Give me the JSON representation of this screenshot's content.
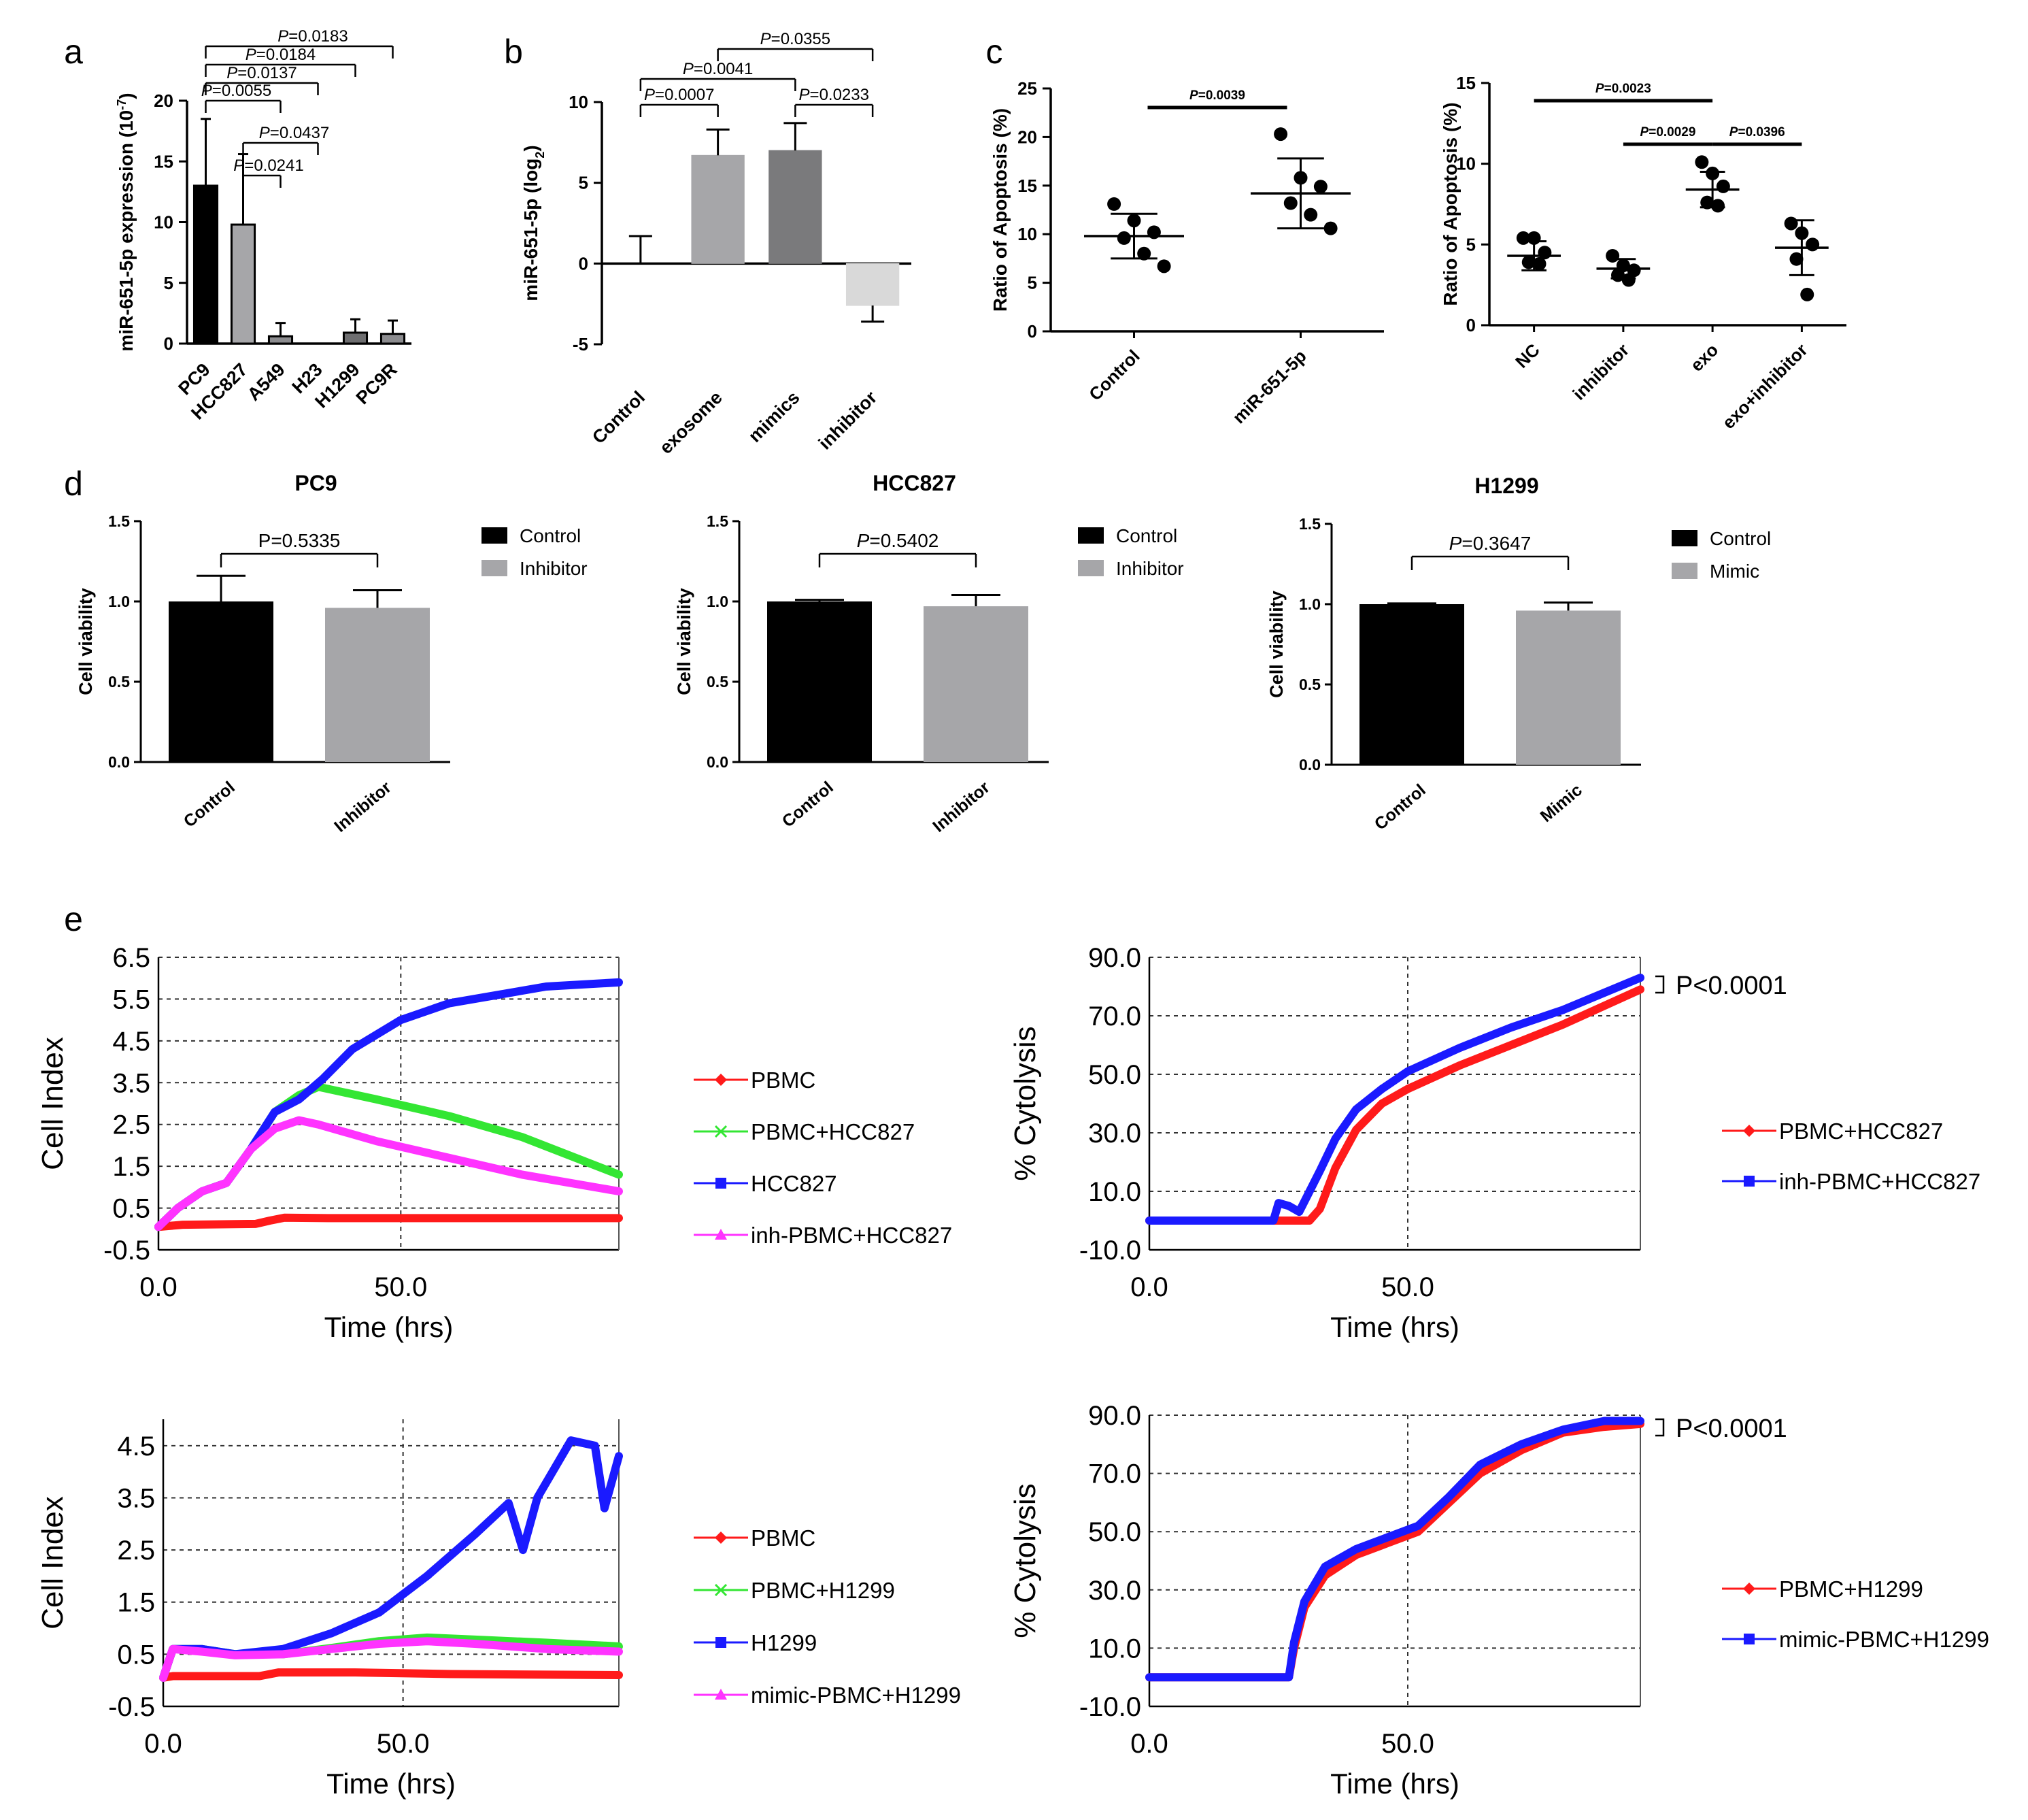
{
  "colors": {
    "black": "#000000",
    "gray_light": "#a6a6a9",
    "gray_mid": "#8c8c8f",
    "gray_dark": "#6e6e70",
    "gray_pale": "#d9d9d9",
    "red": "#ff1a1a",
    "green": "#33e633",
    "blue": "#1a1aff",
    "magenta": "#ff33ff"
  },
  "panel_letters": [
    "a",
    "b",
    "c",
    "d",
    "e"
  ],
  "chart_data": [
    {
      "id": "a",
      "type": "bar",
      "ylabel_main": "miR-651-5p expression (10",
      "ylabel_exp": "-7",
      "ylabel_close": ")",
      "ylim": [
        0,
        20
      ],
      "yticks": [
        "0",
        "5",
        "10",
        "15",
        "20"
      ],
      "categories": [
        "PC9",
        "HCC827",
        "A549",
        "H23",
        "H1299",
        "PC9R"
      ],
      "values": [
        13.0,
        9.8,
        0.6,
        0.0,
        0.9,
        0.8
      ],
      "errors": [
        5.5,
        5.8,
        1.1,
        0.0,
        1.1,
        1.1
      ],
      "fills": [
        "#000000",
        "#a6a6a9",
        "#8c8c8f",
        "#ffffff",
        "#6e6e70",
        "#8c8c8f"
      ],
      "sig": [
        {
          "label": "P=0.0183",
          "from": 0,
          "to": 5
        },
        {
          "label": "P=0.0184",
          "from": 0,
          "to": 4
        },
        {
          "label": "P=0.0137",
          "from": 0,
          "to": 3
        },
        {
          "label": "P=0.0055",
          "from": 0,
          "to": 2
        },
        {
          "label": "P=0.0437",
          "from": 1,
          "to": 3
        },
        {
          "label": "P=0.0241",
          "from": 1,
          "to": 2
        }
      ]
    },
    {
      "id": "b",
      "type": "bar",
      "ylabel_main": "miR-651-5p (log",
      "ylabel_sub": "2",
      "ylabel_close": ")",
      "ylim": [
        -5,
        10
      ],
      "yticks": [
        "-5",
        "0",
        "5",
        "10"
      ],
      "categories": [
        "Control",
        "exosome",
        "mimics",
        "inhibitor"
      ],
      "values": [
        0.0,
        6.7,
        7.0,
        -2.6
      ],
      "errors": [
        1.7,
        1.6,
        1.7,
        1.0
      ],
      "fills": [
        "#ffffff",
        "#a6a6a9",
        "#7a7a7c",
        "#d9d9d9"
      ],
      "sig": [
        {
          "label": "P=0.0355",
          "from": 1,
          "to": 3
        },
        {
          "label": "P=0.0041",
          "from": 0,
          "to": 2
        },
        {
          "label": "P=0.0007",
          "from": 0,
          "to": 1
        },
        {
          "label": "P=0.0233",
          "from": 2,
          "to": 3
        }
      ]
    },
    {
      "id": "c1",
      "type": "scatter",
      "ylabel": "Ratio of Apoptosis (%)",
      "ylim": [
        0,
        25
      ],
      "yticks": [
        "0",
        "5",
        "10",
        "15",
        "20",
        "25"
      ],
      "categories": [
        "Control",
        "miR-651-5p"
      ],
      "points": [
        [
          13.1,
          11.4,
          10.2,
          9.6,
          8.0,
          6.7
        ],
        [
          20.3,
          15.8,
          14.9,
          13.2,
          12.0,
          10.6
        ]
      ],
      "means": [
        9.8,
        14.2
      ],
      "sds": [
        2.3,
        3.6
      ],
      "sig": [
        {
          "label": "P=0.0039",
          "from": 0,
          "to": 1
        }
      ]
    },
    {
      "id": "c2",
      "type": "scatter",
      "ylabel": "Ratio of Apoptosis (%)",
      "ylim": [
        0,
        15
      ],
      "yticks": [
        "0",
        "5",
        "10",
        "15"
      ],
      "categories": [
        "NC",
        "inhibitor",
        "exo",
        "exo+inhibitor"
      ],
      "points": [
        [
          5.4,
          5.4,
          4.5,
          3.9,
          3.8
        ],
        [
          4.3,
          3.7,
          3.4,
          3.1,
          2.8
        ],
        [
          10.1,
          9.4,
          8.6,
          7.6,
          7.4
        ],
        [
          6.3,
          5.7,
          5.0,
          4.1,
          1.9
        ]
      ],
      "means": [
        4.3,
        3.5,
        8.4,
        4.8
      ],
      "sds": [
        0.9,
        0.6,
        1.1,
        1.7
      ],
      "sig": [
        {
          "label": "P=0.0023",
          "from": 0,
          "to": 2
        },
        {
          "label": "P=0.0029",
          "from": 1,
          "to": 2
        },
        {
          "label": "P=0.0396",
          "from": 2,
          "to": 3
        }
      ]
    },
    {
      "id": "d1",
      "type": "bar",
      "title": "PC9",
      "ylabel": "Cell viability",
      "ylim": [
        0,
        1.5
      ],
      "yticks": [
        "0.0",
        "0.5",
        "1.0",
        "1.5"
      ],
      "categories": [
        "Control",
        "Inhibitor"
      ],
      "values": [
        1.0,
        0.96
      ],
      "errors": [
        0.16,
        0.11
      ],
      "sig": {
        "label": "P=0.5335",
        "italic": false
      },
      "legend": [
        "Control",
        "Inhibitor"
      ]
    },
    {
      "id": "d2",
      "type": "bar",
      "title": "HCC827",
      "ylabel": "Cell viability",
      "ylim": [
        0,
        1.5
      ],
      "yticks": [
        "0.0",
        "0.5",
        "1.0",
        "1.5"
      ],
      "categories": [
        "Control",
        "Inhibitor"
      ],
      "values": [
        1.0,
        0.97
      ],
      "errors": [
        0.01,
        0.07
      ],
      "sig": {
        "label": "P=0.5402",
        "italic": true
      },
      "legend": [
        "Control",
        "Inhibitor"
      ]
    },
    {
      "id": "d3",
      "type": "bar",
      "title": "H1299",
      "ylabel": "Cell viability",
      "ylim": [
        0,
        1.5
      ],
      "yticks": [
        "0.0",
        "0.5",
        "1.0",
        "1.5"
      ],
      "categories": [
        "Control",
        "Mimic"
      ],
      "values": [
        1.0,
        0.96
      ],
      "errors": [
        0.005,
        0.05
      ],
      "sig": {
        "label": "P=0.3647",
        "italic": true
      },
      "legend": [
        "Control",
        "Mimic"
      ]
    },
    {
      "id": "e1",
      "type": "line",
      "ylabel": "Cell Index",
      "xlabel": "Time (hrs)",
      "xlim": [
        0,
        95
      ],
      "xticks": [
        "0.0",
        "50.0"
      ],
      "xtick_values": [
        0,
        50
      ],
      "ylim": [
        -0.5,
        6.5
      ],
      "yticks": [
        "6.5",
        "5.5",
        "4.5",
        "3.5",
        "2.5",
        "1.5",
        "0.5",
        "-0.5"
      ],
      "series": [
        {
          "name": "PBMC",
          "color": "#ff1a1a",
          "marker": "diamond",
          "points": [
            [
              0,
              0.05
            ],
            [
              5,
              0.1
            ],
            [
              20,
              0.12
            ],
            [
              23,
              0.2
            ],
            [
              26,
              0.27
            ],
            [
              35,
              0.26
            ],
            [
              50,
              0.26
            ],
            [
              95,
              0.26
            ]
          ]
        },
        {
          "name": "PBMC+HCC827",
          "color": "#33e633",
          "marker": "x",
          "points": [
            [
              0,
              0.05
            ],
            [
              4,
              0.5
            ],
            [
              9,
              0.9
            ],
            [
              14,
              1.1
            ],
            [
              19,
              1.9
            ],
            [
              24,
              2.8
            ],
            [
              29,
              3.2
            ],
            [
              33,
              3.4
            ],
            [
              45,
              3.1
            ],
            [
              60,
              2.7
            ],
            [
              75,
              2.2
            ],
            [
              95,
              1.3
            ]
          ]
        },
        {
          "name": "HCC827",
          "color": "#1a1aff",
          "marker": "square",
          "points": [
            [
              0,
              0.05
            ],
            [
              4,
              0.5
            ],
            [
              9,
              0.9
            ],
            [
              14,
              1.1
            ],
            [
              19,
              1.9
            ],
            [
              24,
              2.8
            ],
            [
              29,
              3.1
            ],
            [
              34,
              3.6
            ],
            [
              40,
              4.3
            ],
            [
              50,
              5.0
            ],
            [
              60,
              5.4
            ],
            [
              70,
              5.6
            ],
            [
              80,
              5.8
            ],
            [
              95,
              5.9
            ]
          ]
        },
        {
          "name": "inh-PBMC+HCC827",
          "color": "#ff33ff",
          "marker": "triangle",
          "points": [
            [
              0,
              0.05
            ],
            [
              4,
              0.5
            ],
            [
              9,
              0.9
            ],
            [
              14,
              1.1
            ],
            [
              19,
              1.9
            ],
            [
              24,
              2.4
            ],
            [
              29,
              2.6
            ],
            [
              33,
              2.5
            ],
            [
              45,
              2.1
            ],
            [
              60,
              1.7
            ],
            [
              75,
              1.3
            ],
            [
              95,
              0.9
            ]
          ]
        }
      ]
    },
    {
      "id": "e2",
      "type": "line",
      "ylabel": "% Cytolysis",
      "xlabel": "Time (hrs)",
      "xlim": [
        0,
        95
      ],
      "xticks": [
        "0.0",
        "50.0"
      ],
      "xtick_values": [
        0,
        50
      ],
      "ylim": [
        -10,
        90
      ],
      "yticks": [
        "90.0",
        "70.0",
        "50.0",
        "30.0",
        "10.0",
        "-10.0"
      ],
      "annotation": "P<0.0001",
      "series": [
        {
          "name": "PBMC+HCC827",
          "color": "#ff1a1a",
          "marker": "diamond",
          "points": [
            [
              0,
              0
            ],
            [
              31,
              0
            ],
            [
              33,
              4
            ],
            [
              36,
              18
            ],
            [
              40,
              31
            ],
            [
              45,
              40
            ],
            [
              50,
              45
            ],
            [
              60,
              53
            ],
            [
              70,
              60
            ],
            [
              80,
              67
            ],
            [
              95,
              79
            ]
          ]
        },
        {
          "name": "inh-PBMC+HCC827",
          "color": "#1a1aff",
          "marker": "square",
          "points": [
            [
              0,
              0
            ],
            [
              24,
              0
            ],
            [
              25,
              6
            ],
            [
              27,
              5
            ],
            [
              29,
              3
            ],
            [
              31,
              10
            ],
            [
              33,
              17
            ],
            [
              36,
              28
            ],
            [
              40,
              38
            ],
            [
              45,
              45
            ],
            [
              50,
              51
            ],
            [
              60,
              59
            ],
            [
              70,
              66
            ],
            [
              80,
              72
            ],
            [
              95,
              83
            ]
          ]
        }
      ]
    },
    {
      "id": "e3",
      "type": "line",
      "ylabel": "Cell Index",
      "xlabel": "Time (hrs)",
      "xlim": [
        0,
        95
      ],
      "xticks": [
        "0.0",
        "50.0"
      ],
      "xtick_values": [
        0,
        50
      ],
      "ylim": [
        -0.5,
        5.0
      ],
      "yticks": [
        "4.5",
        "3.5",
        "2.5",
        "1.5",
        "0.5",
        "-0.5"
      ],
      "series": [
        {
          "name": "PBMC",
          "color": "#ff1a1a",
          "marker": "diamond",
          "points": [
            [
              0,
              0.05
            ],
            [
              2,
              0.08
            ],
            [
              20,
              0.08
            ],
            [
              24,
              0.15
            ],
            [
              40,
              0.15
            ],
            [
              60,
              0.12
            ],
            [
              95,
              0.1
            ]
          ]
        },
        {
          "name": "PBMC+H1299",
          "color": "#33e633",
          "marker": "x",
          "points": [
            [
              0,
              0.05
            ],
            [
              2,
              0.6
            ],
            [
              8,
              0.6
            ],
            [
              15,
              0.5
            ],
            [
              25,
              0.5
            ],
            [
              35,
              0.62
            ],
            [
              45,
              0.75
            ],
            [
              55,
              0.82
            ],
            [
              65,
              0.78
            ],
            [
              80,
              0.72
            ],
            [
              95,
              0.65
            ]
          ]
        },
        {
          "name": "H1299",
          "color": "#1a1aff",
          "marker": "square",
          "points": [
            [
              0,
              0.05
            ],
            [
              2,
              0.6
            ],
            [
              8,
              0.6
            ],
            [
              15,
              0.5
            ],
            [
              25,
              0.6
            ],
            [
              35,
              0.9
            ],
            [
              45,
              1.3
            ],
            [
              55,
              2.0
            ],
            [
              65,
              2.8
            ],
            [
              72,
              3.4
            ],
            [
              75,
              2.5
            ],
            [
              78,
              3.5
            ],
            [
              85,
              4.6
            ],
            [
              90,
              4.5
            ],
            [
              92,
              3.3
            ],
            [
              95,
              4.3
            ]
          ]
        },
        {
          "name": "mimic-PBMC+H1299",
          "color": "#ff33ff",
          "marker": "triangle",
          "points": [
            [
              0,
              0.05
            ],
            [
              2,
              0.6
            ],
            [
              8,
              0.55
            ],
            [
              15,
              0.48
            ],
            [
              25,
              0.5
            ],
            [
              35,
              0.6
            ],
            [
              45,
              0.7
            ],
            [
              55,
              0.75
            ],
            [
              65,
              0.7
            ],
            [
              80,
              0.6
            ],
            [
              95,
              0.55
            ]
          ]
        }
      ]
    },
    {
      "id": "e4",
      "type": "line",
      "ylabel": "% Cytolysis",
      "xlabel": "Time (hrs)",
      "xlim": [
        0,
        95
      ],
      "xticks": [
        "0.0",
        "50.0"
      ],
      "xtick_values": [
        0,
        50
      ],
      "ylim": [
        -10,
        90
      ],
      "yticks": [
        "90.0",
        "70.0",
        "50.0",
        "30.0",
        "10.0",
        "-10.0"
      ],
      "annotation": "P<0.0001",
      "series": [
        {
          "name": "PBMC+H1299",
          "color": "#ff1a1a",
          "marker": "diamond",
          "points": [
            [
              0,
              0
            ],
            [
              27,
              0
            ],
            [
              28,
              10
            ],
            [
              30,
              24
            ],
            [
              34,
              35
            ],
            [
              40,
              42
            ],
            [
              46,
              46
            ],
            [
              52,
              50
            ],
            [
              58,
              60
            ],
            [
              64,
              70
            ],
            [
              72,
              78
            ],
            [
              80,
              84
            ],
            [
              88,
              86
            ],
            [
              95,
              87
            ]
          ]
        },
        {
          "name": "mimic-PBMC+H1299",
          "color": "#1a1aff",
          "marker": "square",
          "points": [
            [
              0,
              0
            ],
            [
              27,
              0
            ],
            [
              28,
              12
            ],
            [
              30,
              26
            ],
            [
              34,
              38
            ],
            [
              40,
              44
            ],
            [
              46,
              48
            ],
            [
              52,
              52
            ],
            [
              58,
              62
            ],
            [
              64,
              73
            ],
            [
              72,
              80
            ],
            [
              80,
              85
            ],
            [
              88,
              88
            ],
            [
              95,
              88
            ]
          ]
        }
      ]
    }
  ]
}
